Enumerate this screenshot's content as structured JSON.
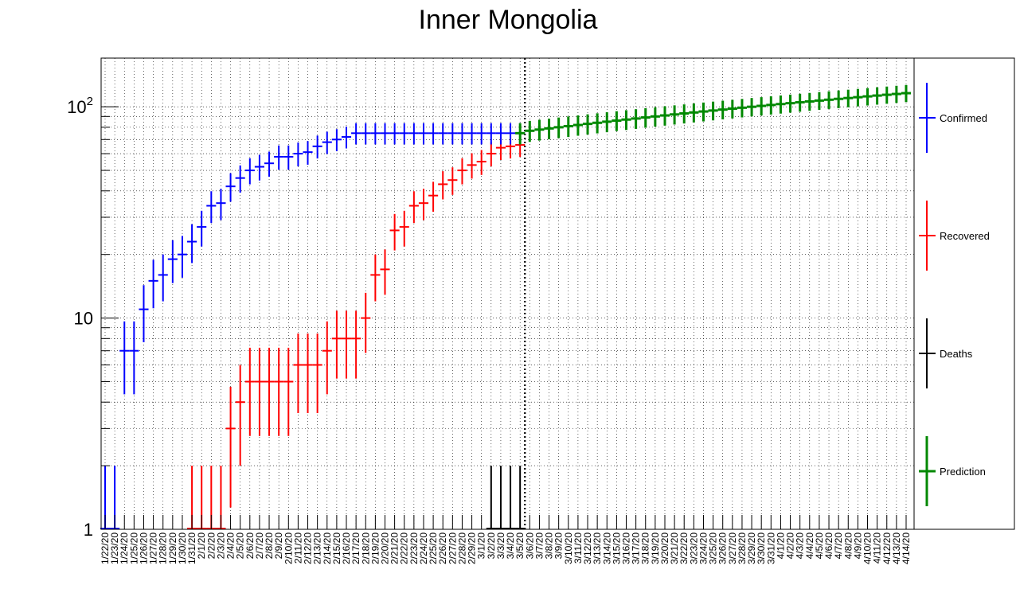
{
  "chart_data": {
    "type": "scatter",
    "title": "Inner Mongolia",
    "xlabel": "",
    "ylabel": "",
    "yscale": "log",
    "ylim": [
      1,
      170
    ],
    "grid": true,
    "legend_position": "right",
    "y_tick_labels": [
      {
        "value": 1,
        "label": "1"
      },
      {
        "value": 10,
        "label": "10"
      },
      {
        "value": 100,
        "label": "10",
        "sup": "2"
      }
    ],
    "categories": [
      "1/22/20",
      "1/23/20",
      "1/24/20",
      "1/25/20",
      "1/26/20",
      "1/27/20",
      "1/28/20",
      "1/29/20",
      "1/30/20",
      "1/31/20",
      "2/1/20",
      "2/2/20",
      "2/3/20",
      "2/4/20",
      "2/5/20",
      "2/6/20",
      "2/7/20",
      "2/8/20",
      "2/9/20",
      "2/10/20",
      "2/11/20",
      "2/12/20",
      "2/13/20",
      "2/14/20",
      "2/15/20",
      "2/16/20",
      "2/17/20",
      "2/18/20",
      "2/19/20",
      "2/20/20",
      "2/21/20",
      "2/22/20",
      "2/23/20",
      "2/24/20",
      "2/25/20",
      "2/26/20",
      "2/27/20",
      "2/28/20",
      "2/29/20",
      "3/1/20",
      "3/2/20",
      "3/3/20",
      "3/4/20",
      "3/5/20",
      "3/6/20",
      "3/7/20",
      "3/8/20",
      "3/9/20",
      "3/10/20",
      "3/11/20",
      "3/12/20",
      "3/13/20",
      "3/14/20",
      "3/15/20",
      "3/16/20",
      "3/17/20",
      "3/18/20",
      "3/19/20",
      "3/20/20",
      "3/21/20",
      "3/22/20",
      "3/23/20",
      "3/24/20",
      "3/25/20",
      "3/26/20",
      "3/27/20",
      "3/28/20",
      "3/29/20",
      "3/30/20",
      "3/31/20",
      "4/1/20",
      "4/2/20",
      "4/3/20",
      "4/4/20",
      "4/5/20",
      "4/6/20",
      "4/7/20",
      "4/8/20",
      "4/9/20",
      "4/10/20",
      "4/11/20",
      "4/12/20",
      "4/13/20",
      "4/14/20"
    ],
    "divider_category": "3/5/20",
    "series": [
      {
        "name": "Confirmed",
        "color": "#0000ff",
        "start_index": 0,
        "values": [
          1,
          1,
          7,
          7,
          11,
          15,
          16,
          19,
          20,
          23,
          27,
          34,
          35,
          42,
          46,
          50,
          52,
          54,
          58,
          58,
          60,
          61,
          65,
          68,
          70,
          72,
          75,
          75,
          75,
          75,
          75,
          75,
          75,
          75,
          75,
          75,
          75,
          75,
          75,
          75,
          75,
          75,
          75,
          75
        ]
      },
      {
        "name": "Recovered",
        "color": "#ff0000",
        "start_index": 0,
        "values": [
          0,
          0,
          0,
          0,
          0,
          0,
          0,
          0,
          0,
          1,
          1,
          1,
          1,
          3,
          4,
          5,
          5,
          5,
          5,
          5,
          6,
          6,
          6,
          7,
          8,
          8,
          8,
          10,
          16,
          17,
          26,
          27,
          34,
          35,
          38,
          43,
          45,
          50,
          53,
          55,
          60,
          64,
          65,
          66
        ]
      },
      {
        "name": "Deaths",
        "color": "#000000",
        "start_index": 0,
        "values": [
          0,
          0,
          0,
          0,
          0,
          0,
          0,
          0,
          0,
          0,
          0,
          0,
          0,
          0,
          0,
          0,
          0,
          0,
          0,
          0,
          0,
          0,
          0,
          0,
          0,
          0,
          0,
          0,
          0,
          0,
          0,
          0,
          0,
          0,
          0,
          0,
          0,
          0,
          0,
          0,
          1,
          1,
          1,
          1
        ]
      },
      {
        "name": "Prediction",
        "color": "#008800",
        "start_index": 43,
        "values": [
          75,
          77,
          78,
          79,
          80,
          81,
          82,
          83,
          84,
          85,
          86,
          87,
          88,
          89,
          90,
          91,
          92,
          93,
          94,
          95,
          96,
          97,
          98,
          99,
          100,
          101,
          102,
          103,
          104,
          105,
          106,
          107,
          108,
          109,
          110,
          111,
          112,
          113,
          114,
          115,
          116
        ]
      }
    ]
  }
}
